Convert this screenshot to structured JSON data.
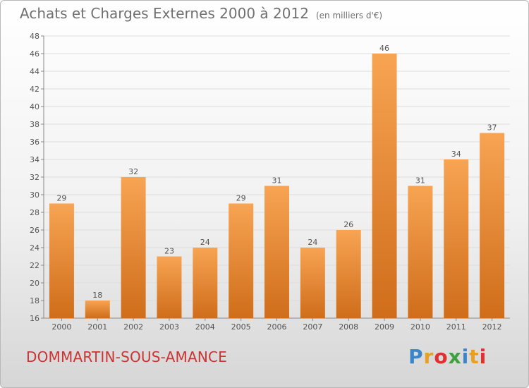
{
  "title": "Achats et Charges Externes 2000 à 2012",
  "unit": "(en milliers d'€)",
  "town": "DOMMARTIN-SOUS-AMANCE",
  "brand": {
    "letters": [
      "P",
      "r",
      "o",
      "x",
      "i",
      "t",
      "i"
    ],
    "colors": [
      "#3a86c8",
      "#e8a020",
      "#e03030",
      "#40a040",
      "#3a86c8",
      "#e8a020",
      "#e03030"
    ]
  },
  "chart_data": {
    "type": "bar",
    "categories": [
      "2000",
      "2001",
      "2002",
      "2003",
      "2004",
      "2005",
      "2006",
      "2007",
      "2008",
      "2009",
      "2010",
      "2011",
      "2012"
    ],
    "values": [
      29,
      18,
      32,
      23,
      24,
      29,
      31,
      24,
      26,
      46,
      31,
      34,
      37
    ],
    "ylim": [
      16,
      48
    ],
    "yticks": [
      16,
      18,
      20,
      22,
      24,
      26,
      28,
      30,
      32,
      34,
      36,
      38,
      40,
      42,
      44,
      46,
      48
    ],
    "grid": true,
    "bar_color": "#f0923a"
  }
}
